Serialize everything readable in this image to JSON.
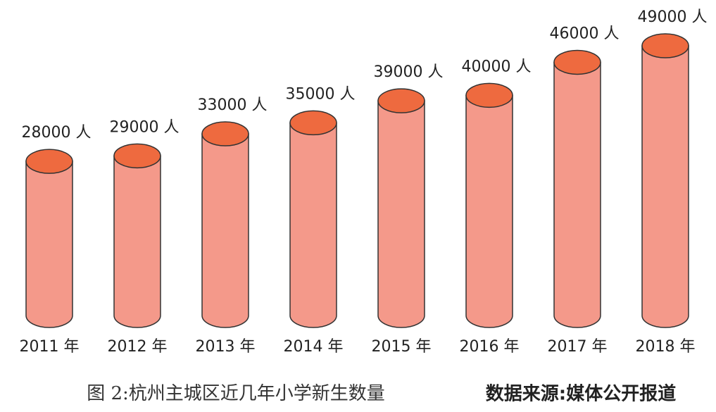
{
  "chart_data": {
    "type": "cylinder",
    "categories": [
      "2011 年",
      "2012 年",
      "2013 年",
      "2014 年",
      "2015 年",
      "2016 年",
      "2017 年",
      "2018 年"
    ],
    "values": [
      28000,
      29000,
      33000,
      35000,
      39000,
      40000,
      46000,
      49000
    ],
    "value_labels": [
      "28000 人",
      "29000 人",
      "33000 人",
      "35000 人",
      "39000 人",
      "40000 人",
      "46000 人",
      "49000 人"
    ],
    "color": "#f4998a",
    "top_color": "#ee6a3f",
    "caption": "图 2:杭州主城区近几年小学新生数量",
    "source": "数据来源:媒体公开报道"
  }
}
